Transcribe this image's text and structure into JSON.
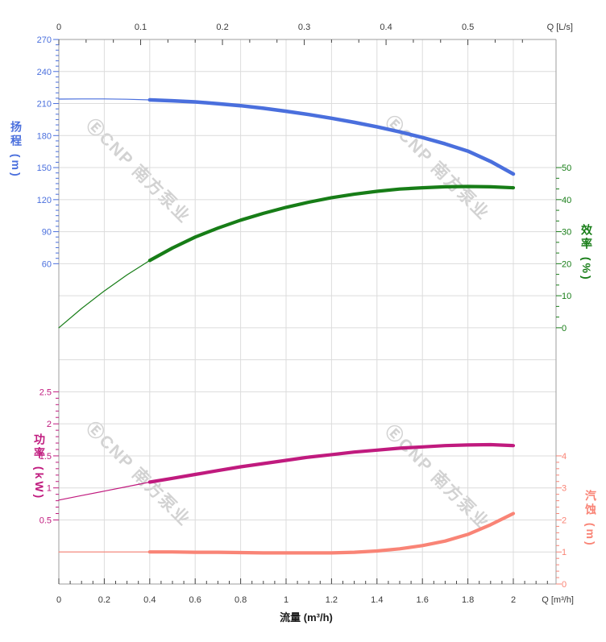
{
  "watermark": {
    "text": "ⒺCNP 南方泵业"
  },
  "chart_data": {
    "type": "line",
    "title": "",
    "grid": "on",
    "x_top": {
      "label": "Q [L/s]",
      "ticks": [
        0,
        0.1,
        0.2,
        0.3,
        0.4,
        0.5
      ],
      "range": [
        0,
        0.61
      ]
    },
    "x_bottom": {
      "label": "Q [m³/h]",
      "title": "流量 (m³/h)",
      "ticks": [
        0,
        0.2,
        0.4,
        0.6,
        0.8,
        1,
        1.2,
        1.4,
        1.6,
        1.8,
        2
      ],
      "range": [
        0,
        2.19
      ]
    },
    "axes": {
      "head": {
        "title": "扬程 (m)",
        "color": "#4a6fdd",
        "ticks": [
          270,
          240,
          210,
          180,
          150,
          120,
          90,
          60
        ],
        "minor_step": 5
      },
      "efficiency": {
        "title": "效率 (%)",
        "color": "#177d17",
        "ticks": [
          50,
          40,
          30,
          20,
          10,
          0
        ],
        "minor_per_major": 3
      },
      "power": {
        "title": "功率 (kW)",
        "color": "#c01a7e",
        "ticks": [
          2.5,
          2,
          1.5,
          1,
          0.5
        ],
        "minor_step": 0.1
      },
      "npsh": {
        "title": "汽蚀 (m)",
        "color": "#f98476",
        "ticks": [
          4,
          3,
          2,
          1,
          0
        ],
        "minor_step": 0.2
      }
    },
    "series": [
      {
        "name": "head",
        "axis": "head",
        "color": "#4a6fdd",
        "thin_until": 0.4,
        "width": 4.5,
        "points": [
          [
            0,
            214.2
          ],
          [
            0.1,
            214.3
          ],
          [
            0.2,
            214.3
          ],
          [
            0.3,
            214.0
          ],
          [
            0.4,
            213.4
          ],
          [
            0.5,
            212.6
          ],
          [
            0.6,
            211.5
          ],
          [
            0.7,
            209.9
          ],
          [
            0.8,
            208.0
          ],
          [
            0.9,
            205.6
          ],
          [
            1.0,
            202.8
          ],
          [
            1.1,
            199.7
          ],
          [
            1.2,
            196.2
          ],
          [
            1.3,
            192.4
          ],
          [
            1.4,
            188.2
          ],
          [
            1.5,
            183.5
          ],
          [
            1.6,
            178.2
          ],
          [
            1.7,
            172.2
          ],
          [
            1.8,
            165.4
          ],
          [
            1.9,
            155.8
          ],
          [
            2.0,
            144.0
          ]
        ]
      },
      {
        "name": "efficiency",
        "axis": "efficiency",
        "color": "#177d17",
        "thin_until": 0.4,
        "width": 4.2,
        "points": [
          [
            0,
            0
          ],
          [
            0.1,
            6.0
          ],
          [
            0.2,
            11.5
          ],
          [
            0.3,
            16.5
          ],
          [
            0.4,
            21.0
          ],
          [
            0.5,
            24.9
          ],
          [
            0.6,
            28.3
          ],
          [
            0.7,
            31.1
          ],
          [
            0.8,
            33.6
          ],
          [
            0.9,
            35.7
          ],
          [
            1.0,
            37.6
          ],
          [
            1.1,
            39.2
          ],
          [
            1.2,
            40.6
          ],
          [
            1.3,
            41.7
          ],
          [
            1.4,
            42.6
          ],
          [
            1.5,
            43.3
          ],
          [
            1.6,
            43.7
          ],
          [
            1.7,
            44.0
          ],
          [
            1.8,
            44.1
          ],
          [
            1.9,
            44.0
          ],
          [
            2.0,
            43.7
          ]
        ]
      },
      {
        "name": "power",
        "axis": "power",
        "color": "#c01a7e",
        "thin_until": 0.4,
        "width": 4.2,
        "points": [
          [
            0,
            0.81
          ],
          [
            0.1,
            0.88
          ],
          [
            0.2,
            0.95
          ],
          [
            0.3,
            1.02
          ],
          [
            0.4,
            1.09
          ],
          [
            0.5,
            1.15
          ],
          [
            0.6,
            1.21
          ],
          [
            0.7,
            1.27
          ],
          [
            0.8,
            1.33
          ],
          [
            0.9,
            1.38
          ],
          [
            1.0,
            1.43
          ],
          [
            1.1,
            1.48
          ],
          [
            1.2,
            1.52
          ],
          [
            1.3,
            1.56
          ],
          [
            1.4,
            1.59
          ],
          [
            1.5,
            1.62
          ],
          [
            1.6,
            1.64
          ],
          [
            1.7,
            1.66
          ],
          [
            1.8,
            1.67
          ],
          [
            1.9,
            1.675
          ],
          [
            2.0,
            1.66
          ]
        ]
      },
      {
        "name": "npsh",
        "axis": "npsh",
        "color": "#f98476",
        "thin_until": 0.4,
        "width": 4.2,
        "points": [
          [
            0,
            1.0
          ],
          [
            0.1,
            1.0
          ],
          [
            0.2,
            1.0
          ],
          [
            0.3,
            1.0
          ],
          [
            0.4,
            1.0
          ],
          [
            0.5,
            1.0
          ],
          [
            0.6,
            0.99
          ],
          [
            0.7,
            0.99
          ],
          [
            0.8,
            0.98
          ],
          [
            0.9,
            0.97
          ],
          [
            1.0,
            0.97
          ],
          [
            1.1,
            0.97
          ],
          [
            1.2,
            0.97
          ],
          [
            1.3,
            0.99
          ],
          [
            1.4,
            1.03
          ],
          [
            1.5,
            1.1
          ],
          [
            1.6,
            1.2
          ],
          [
            1.7,
            1.34
          ],
          [
            1.8,
            1.55
          ],
          [
            1.9,
            1.85
          ],
          [
            2.0,
            2.2
          ]
        ]
      }
    ]
  }
}
